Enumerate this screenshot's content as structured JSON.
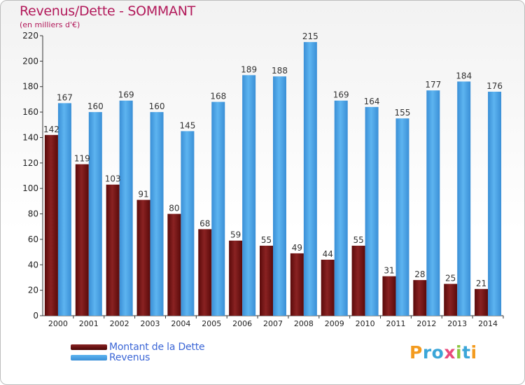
{
  "chart_data": {
    "type": "bar",
    "title": "Revenus/Dette - SOMMANT",
    "subtitle": "(en milliers d'€)",
    "categories": [
      "2000",
      "2001",
      "2002",
      "2003",
      "2004",
      "2005",
      "2006",
      "2007",
      "2008",
      "2009",
      "2010",
      "2011",
      "2012",
      "2013",
      "2014"
    ],
    "series": [
      {
        "name": "Montant de la Dette",
        "color": "#7a1616",
        "values": [
          142,
          119,
          103,
          91,
          80,
          68,
          59,
          55,
          49,
          44,
          55,
          31,
          28,
          25,
          21
        ]
      },
      {
        "name": "Revenus",
        "color": "#4aa3e6",
        "values": [
          167,
          160,
          169,
          160,
          145,
          168,
          189,
          188,
          215,
          169,
          164,
          155,
          177,
          184,
          176
        ]
      }
    ],
    "ylim": [
      0,
      220
    ],
    "yticks": [
      0,
      20,
      40,
      60,
      80,
      100,
      120,
      140,
      160,
      180,
      200,
      220
    ],
    "grid": false,
    "legend_position": "bottom-left"
  },
  "logo": {
    "text": "Proxiti",
    "letters": [
      "P",
      "r",
      "o",
      "x",
      "i",
      "t",
      "i"
    ]
  }
}
